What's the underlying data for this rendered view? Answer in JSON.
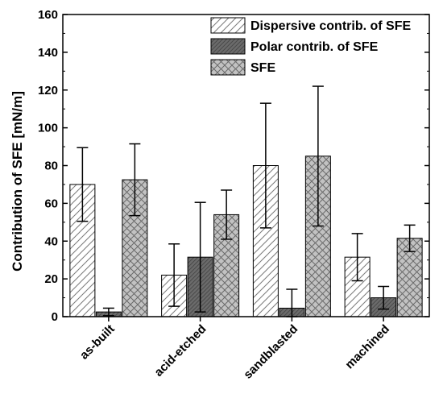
{
  "chart_data": {
    "type": "bar",
    "title": "",
    "xlabel": "",
    "ylabel": "Contribution of SFE [mN/m]",
    "ylim": [
      0,
      160
    ],
    "yticks": [
      0,
      20,
      40,
      60,
      80,
      100,
      120,
      140,
      160
    ],
    "categories": [
      "as-built",
      "acid-etched",
      "sandblasted",
      "machined"
    ],
    "series": [
      {
        "name": "Dispersive contrib. of SFE",
        "values": [
          70,
          22,
          80,
          31.5
        ],
        "errors": [
          19.5,
          16.5,
          33,
          12.5
        ],
        "pattern": "diagonal-hatch",
        "color": "#ffffff"
      },
      {
        "name": "Polar contrib. of SFE",
        "values": [
          2.5,
          31.5,
          4.5,
          10
        ],
        "errors": [
          2,
          29,
          10,
          6
        ],
        "pattern": "dense-hatch-dark",
        "color": "#6e6e6e"
      },
      {
        "name": "SFE",
        "values": [
          72.5,
          54,
          85,
          41.5
        ],
        "errors": [
          19,
          13,
          37,
          7
        ],
        "pattern": "crosshatch",
        "color": "#bdbdbd"
      }
    ],
    "legend_position": "top-right",
    "grid": false
  }
}
